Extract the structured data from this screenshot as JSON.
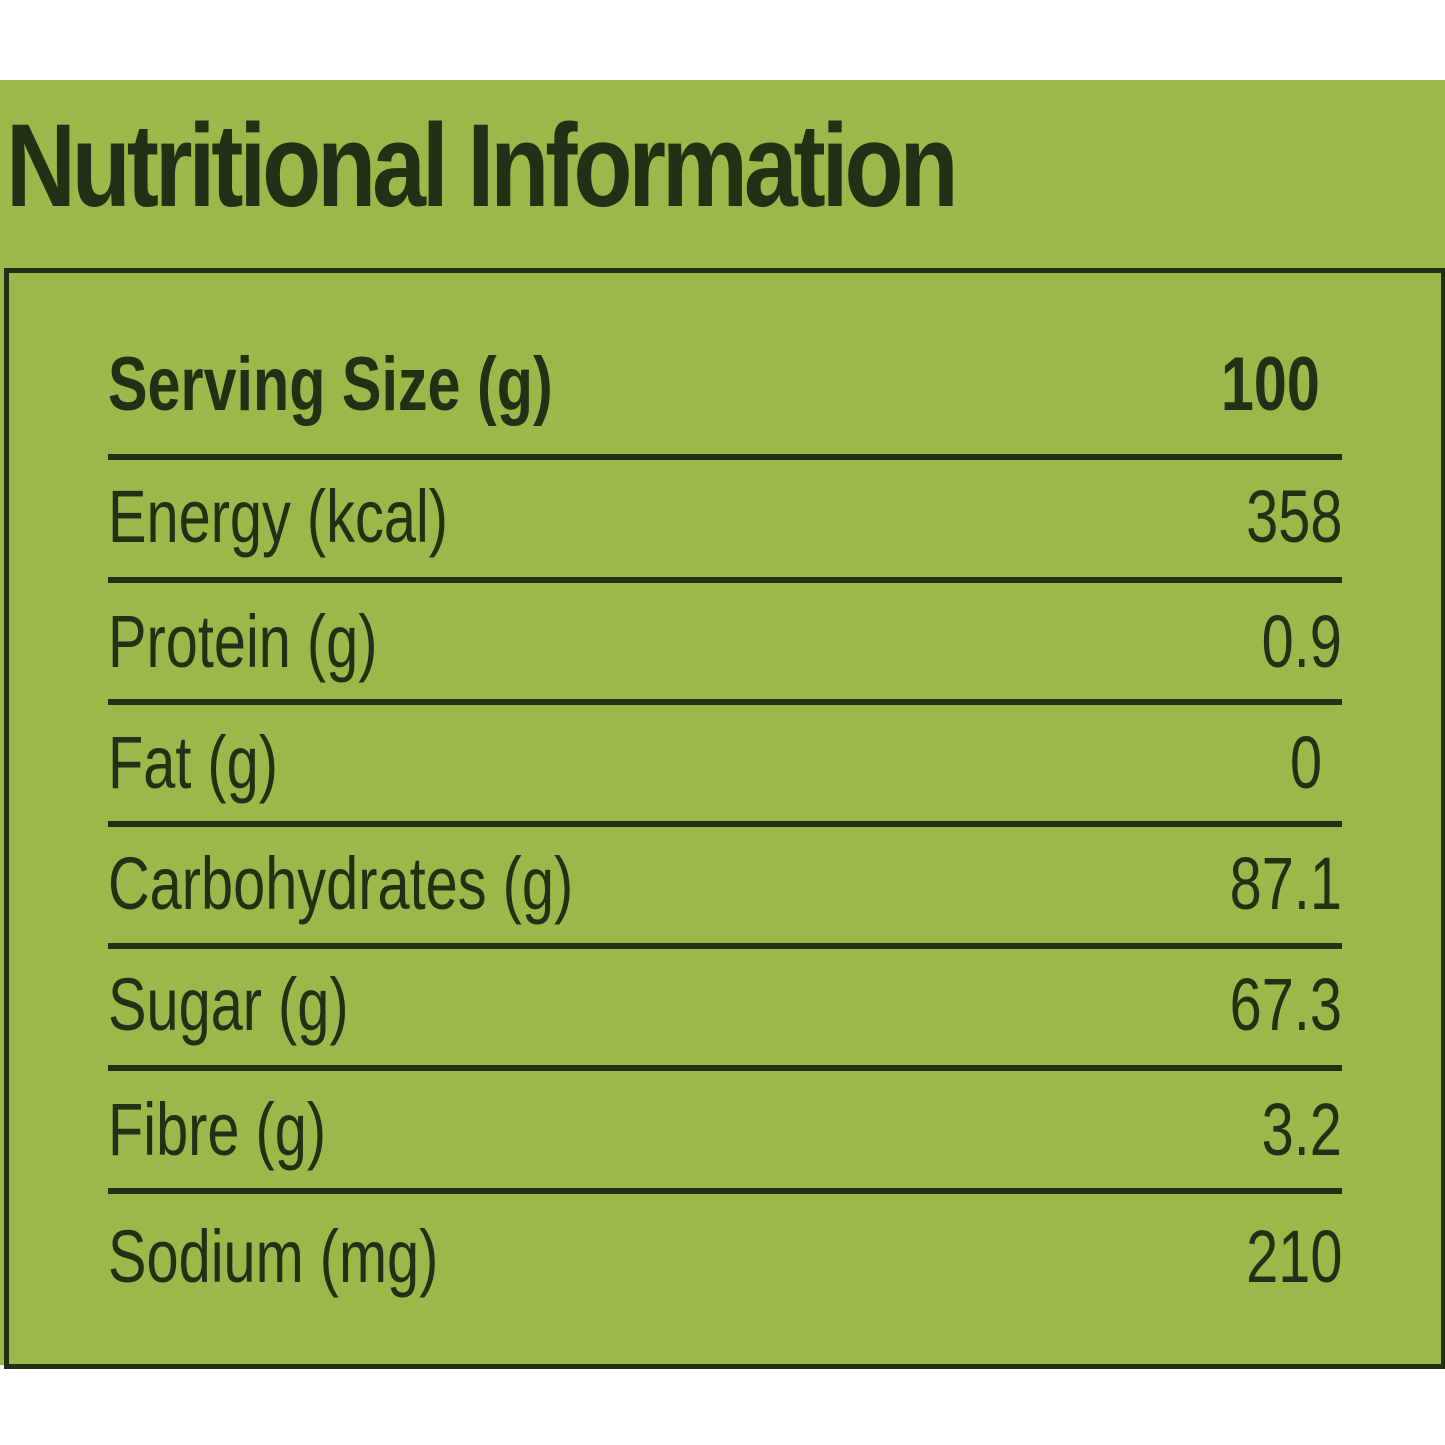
{
  "title": "Nutritional Information",
  "table": {
    "header": {
      "label": "Serving Size (g)",
      "value": "100"
    },
    "rows": [
      {
        "label": "Energy (kcal)",
        "value": "358"
      },
      {
        "label": "Protein (g)",
        "value": "0.9"
      },
      {
        "label": "Fat (g)",
        "value": "0"
      },
      {
        "label": "Carbohydrates (g)",
        "value": "87.1"
      },
      {
        "label": "Sugar (g)",
        "value": "67.3"
      },
      {
        "label": "Fibre (g)",
        "value": "3.2"
      },
      {
        "label": "Sodium (mg)",
        "value": "210"
      }
    ]
  },
  "colors": {
    "background": "#9cb74a",
    "ink": "#243015"
  }
}
